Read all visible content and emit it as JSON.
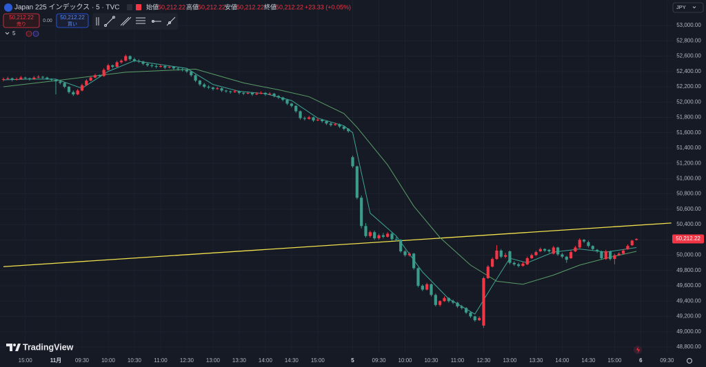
{
  "header": {
    "symbol": "Japan 225 インデックス · 5 · TVC",
    "ohlc": [
      {
        "label": "始値",
        "value": "50,212.22"
      },
      {
        "label": "高値",
        "value": "50,212.22"
      },
      {
        "label": "安値",
        "value": "50,212.22"
      },
      {
        "label": "終値",
        "value": "50,212.22"
      }
    ],
    "change": "+23.33 (+0.05%)",
    "sell": {
      "price": "50,212.22",
      "label": "売り"
    },
    "spread": "0.00",
    "buy": {
      "price": "50,212.22",
      "label": "買い"
    },
    "indicator": "5",
    "currency": "JPY",
    "brand": "TradingView"
  },
  "chart_data": {
    "type": "candlestick",
    "up_color": "#f23645",
    "down_color": "#3b9c8c",
    "grid": true,
    "xlim": [
      -0.79,
      153.2
    ],
    "ylim": [
      48719,
      53333
    ],
    "xticks": [
      {
        "value": 5,
        "label": "15:00"
      },
      {
        "value": 12,
        "label": "11月"
      },
      {
        "value": 18,
        "label": "09:30"
      },
      {
        "value": 24,
        "label": "10:00"
      },
      {
        "value": 30,
        "label": "10:30"
      },
      {
        "value": 36,
        "label": "11:00"
      },
      {
        "value": 42,
        "label": "12:30"
      },
      {
        "value": 48,
        "label": "13:00"
      },
      {
        "value": 54,
        "label": "13:30"
      },
      {
        "value": 60,
        "label": "14:00"
      },
      {
        "value": 66,
        "label": "14:30"
      },
      {
        "value": 72,
        "label": "15:00"
      },
      {
        "value": 80,
        "label": "5"
      },
      {
        "value": 86,
        "label": "09:30"
      },
      {
        "value": 92,
        "label": "10:00"
      },
      {
        "value": 98,
        "label": "10:30"
      },
      {
        "value": 104,
        "label": "11:00"
      },
      {
        "value": 110,
        "label": "12:30"
      },
      {
        "value": 116,
        "label": "13:00"
      },
      {
        "value": 122,
        "label": "13:30"
      },
      {
        "value": 128,
        "label": "14:00"
      },
      {
        "value": 134,
        "label": "14:30"
      },
      {
        "value": 140,
        "label": "15:00"
      },
      {
        "value": 146,
        "label": "6"
      },
      {
        "value": 152,
        "label": "09:30"
      }
    ],
    "yticks": [
      {
        "value": 48800,
        "label": "48,800.00"
      },
      {
        "value": 49000,
        "label": "49,000.00"
      },
      {
        "value": 49200,
        "label": "49,200.00"
      },
      {
        "value": 49400,
        "label": "49,400.00"
      },
      {
        "value": 49600,
        "label": "49,600.00"
      },
      {
        "value": 49800,
        "label": "49,800.00"
      },
      {
        "value": 50000,
        "label": "50,000.00"
      },
      {
        "value": 50200,
        "label": "50,200.00"
      },
      {
        "value": 50400,
        "label": "50,400.00"
      },
      {
        "value": 50600,
        "label": "50,600.00"
      },
      {
        "value": 50800,
        "label": "50,800.00"
      },
      {
        "value": 51000,
        "label": "51,000.00"
      },
      {
        "value": 51200,
        "label": "51,200.00"
      },
      {
        "value": 51400,
        "label": "51,400.00"
      },
      {
        "value": 51600,
        "label": "51,600.00"
      },
      {
        "value": 51800,
        "label": "51,800.00"
      },
      {
        "value": 52000,
        "label": "52,000.00"
      },
      {
        "value": 52200,
        "label": "52,200.00"
      },
      {
        "value": 52400,
        "label": "52,400.00"
      },
      {
        "value": 52600,
        "label": "52,600.00"
      },
      {
        "value": 52800,
        "label": "52,800.00"
      },
      {
        "value": 53000,
        "label": "53,000.00"
      }
    ],
    "last_price": {
      "value": 50212.22,
      "label": "50,212.22"
    },
    "trendline": {
      "color": "#f2e14c",
      "x": [
        0,
        153
      ],
      "values": [
        49850,
        50420
      ]
    },
    "lines": [
      {
        "color": "#3fa596",
        "x": [
          0,
          6,
          12,
          18,
          24,
          30,
          36,
          42,
          48,
          54,
          60,
          66,
          72,
          78,
          80,
          84,
          90,
          96,
          102,
          108,
          112,
          116,
          120,
          126,
          132,
          138,
          145
        ],
        "values": [
          52290,
          52300,
          52300,
          52180,
          52400,
          52540,
          52490,
          52440,
          52230,
          52140,
          52110,
          52020,
          51790,
          51690,
          51600,
          50550,
          50250,
          49780,
          49430,
          49230,
          49600,
          49960,
          49900,
          50040,
          50080,
          50040,
          50100
        ]
      },
      {
        "color": "#5a9e68",
        "x": [
          0,
          12,
          28,
          44,
          55,
          63,
          70,
          78,
          81,
          88,
          94,
          100,
          107,
          113,
          119,
          126,
          132,
          138,
          145
        ],
        "values": [
          52200,
          52280,
          52390,
          52430,
          52250,
          52160,
          52070,
          51850,
          51670,
          51180,
          50640,
          50230,
          49870,
          49660,
          49620,
          49740,
          49870,
          49960,
          50050
        ]
      }
    ],
    "ohlc": [
      [
        52290,
        52320,
        52270,
        52300
      ],
      [
        52300,
        52330,
        52290,
        52310
      ],
      [
        52310,
        52320,
        52270,
        52290
      ],
      [
        52290,
        52320,
        52280,
        52300
      ],
      [
        52300,
        52340,
        52290,
        52320
      ],
      [
        52320,
        52330,
        52300,
        52310
      ],
      [
        52310,
        52320,
        52280,
        52300
      ],
      [
        52300,
        52340,
        52290,
        52320
      ],
      [
        52320,
        52350,
        52310,
        52330
      ],
      [
        52330,
        52340,
        52300,
        52320
      ],
      [
        52320,
        52330,
        52290,
        52300
      ],
      [
        52300,
        52310,
        52270,
        52290
      ],
      [
        52290,
        52300,
        52100,
        52270
      ],
      [
        52270,
        52290,
        52230,
        52250
      ],
      [
        52250,
        52260,
        52180,
        52200
      ],
      [
        52200,
        52210,
        52110,
        52130
      ],
      [
        52130,
        52150,
        52080,
        52100
      ],
      [
        52100,
        52170,
        52090,
        52150
      ],
      [
        52150,
        52240,
        52140,
        52220
      ],
      [
        52220,
        52300,
        52210,
        52280
      ],
      [
        52280,
        52340,
        52270,
        52320
      ],
      [
        52320,
        52370,
        52310,
        52350
      ],
      [
        52350,
        52360,
        52320,
        52340
      ],
      [
        52340,
        52440,
        52330,
        52420
      ],
      [
        52420,
        52500,
        52410,
        52480
      ],
      [
        52480,
        52490,
        52440,
        52460
      ],
      [
        52460,
        52540,
        52450,
        52520
      ],
      [
        52520,
        52560,
        52500,
        52540
      ],
      [
        52540,
        52620,
        52530,
        52600
      ],
      [
        52600,
        52610,
        52540,
        52560
      ],
      [
        52560,
        52580,
        52520,
        52540
      ],
      [
        52540,
        52560,
        52510,
        52530
      ],
      [
        52530,
        52540,
        52480,
        52500
      ],
      [
        52500,
        52520,
        52460,
        52480
      ],
      [
        52480,
        52500,
        52450,
        52470
      ],
      [
        52470,
        52490,
        52440,
        52460
      ],
      [
        52460,
        52490,
        52450,
        52470
      ],
      [
        52470,
        52480,
        52430,
        52450
      ],
      [
        52450,
        52480,
        52440,
        52460
      ],
      [
        52460,
        52470,
        52420,
        52440
      ],
      [
        52440,
        52450,
        52410,
        52430
      ],
      [
        52430,
        52450,
        52400,
        52420
      ],
      [
        52420,
        52430,
        52380,
        52400
      ],
      [
        52400,
        52410,
        52330,
        52350
      ],
      [
        52350,
        52360,
        52260,
        52280
      ],
      [
        52280,
        52290,
        52210,
        52230
      ],
      [
        52230,
        52250,
        52180,
        52200
      ],
      [
        52200,
        52220,
        52170,
        52190
      ],
      [
        52190,
        52200,
        52150,
        52170
      ],
      [
        52170,
        52200,
        52160,
        52180
      ],
      [
        52180,
        52190,
        52130,
        52150
      ],
      [
        52150,
        52160,
        52120,
        52140
      ],
      [
        52140,
        52150,
        52110,
        52130
      ],
      [
        52130,
        52160,
        52120,
        52140
      ],
      [
        52140,
        52150,
        52100,
        52120
      ],
      [
        52120,
        52130,
        52090,
        52110
      ],
      [
        52110,
        52140,
        52100,
        52120
      ],
      [
        52120,
        52130,
        52080,
        52100
      ],
      [
        52100,
        52130,
        52090,
        52110
      ],
      [
        52110,
        52140,
        52100,
        52120
      ],
      [
        52120,
        52130,
        52080,
        52100
      ],
      [
        52100,
        52130,
        52090,
        52110
      ],
      [
        52110,
        52120,
        52060,
        52080
      ],
      [
        52080,
        52090,
        52040,
        52060
      ],
      [
        52060,
        52070,
        52010,
        52030
      ],
      [
        52030,
        52040,
        51960,
        51980
      ],
      [
        51980,
        51990,
        51930,
        51950
      ],
      [
        51950,
        51960,
        51860,
        51880
      ],
      [
        51880,
        51890,
        51770,
        51790
      ],
      [
        51790,
        51810,
        51760,
        51780
      ],
      [
        51780,
        51820,
        51770,
        51800
      ],
      [
        51800,
        51810,
        51740,
        51760
      ],
      [
        51760,
        51790,
        51750,
        51770
      ],
      [
        51770,
        51780,
        51730,
        51750
      ],
      [
        51750,
        51760,
        51700,
        51720
      ],
      [
        51720,
        51740,
        51680,
        51700
      ],
      [
        51700,
        51730,
        51690,
        51710
      ],
      [
        51710,
        51720,
        51660,
        51680
      ],
      [
        51680,
        51690,
        51630,
        51650
      ],
      [
        51650,
        51660,
        51600,
        51620
      ],
      [
        51280,
        51300,
        51140,
        51160
      ],
      [
        51160,
        51170,
        50730,
        50750
      ],
      [
        50750,
        50780,
        50350,
        50380
      ],
      [
        50380,
        50420,
        50230,
        50250
      ],
      [
        50250,
        50320,
        50230,
        50300
      ],
      [
        50300,
        50320,
        50200,
        50220
      ],
      [
        50220,
        50280,
        50200,
        50260
      ],
      [
        50260,
        50290,
        50220,
        50240
      ],
      [
        50240,
        50300,
        50230,
        50280
      ],
      [
        50280,
        50300,
        50190,
        50210
      ],
      [
        50210,
        50240,
        50180,
        50200
      ],
      [
        50200,
        50210,
        50030,
        50050
      ],
      [
        50050,
        50070,
        49980,
        50000
      ],
      [
        50000,
        50040,
        49980,
        50020
      ],
      [
        50020,
        50030,
        49810,
        49830
      ],
      [
        49830,
        49840,
        49580,
        49600
      ],
      [
        49600,
        49620,
        49530,
        49550
      ],
      [
        49550,
        49640,
        49540,
        49620
      ],
      [
        49620,
        49630,
        49460,
        49480
      ],
      [
        49480,
        49500,
        49330,
        49350
      ],
      [
        49350,
        49410,
        49330,
        49400
      ],
      [
        49400,
        49460,
        49390,
        49440
      ],
      [
        49440,
        49450,
        49380,
        49400
      ],
      [
        49400,
        49420,
        49360,
        49380
      ],
      [
        49380,
        49390,
        49310,
        49330
      ],
      [
        49330,
        49350,
        49290,
        49310
      ],
      [
        49310,
        49320,
        49230,
        49250
      ],
      [
        49250,
        49260,
        49180,
        49200
      ],
      [
        49200,
        49210,
        49130,
        49150
      ],
      [
        49150,
        49200,
        49140,
        49180
      ],
      [
        49080,
        49720,
        49050,
        49700
      ],
      [
        49700,
        49870,
        49690,
        49850
      ],
      [
        49850,
        49970,
        49840,
        49950
      ],
      [
        49950,
        50130,
        49940,
        50060
      ],
      [
        50060,
        50080,
        49960,
        49980
      ],
      [
        49980,
        50030,
        49960,
        50000
      ],
      [
        50050,
        50060,
        49880,
        49900
      ],
      [
        49900,
        49920,
        49860,
        49880
      ],
      [
        49880,
        49900,
        49840,
        49860
      ],
      [
        49860,
        49910,
        49850,
        49890
      ],
      [
        49880,
        49980,
        49870,
        49960
      ],
      [
        49960,
        50020,
        49950,
        50000
      ],
      [
        50000,
        50060,
        49990,
        50040
      ],
      [
        50050,
        50100,
        50040,
        50080
      ],
      [
        50080,
        50090,
        50040,
        50060
      ],
      [
        50070,
        50080,
        50030,
        50050
      ],
      [
        50020,
        50120,
        50010,
        50100
      ],
      [
        50100,
        50110,
        49990,
        50010
      ],
      [
        50010,
        50030,
        49960,
        49980
      ],
      [
        49980,
        49990,
        49900,
        49940
      ],
      [
        49960,
        50060,
        49950,
        50040
      ],
      [
        50050,
        50120,
        50040,
        50100
      ],
      [
        50100,
        50220,
        50090,
        50200
      ],
      [
        50200,
        50210,
        50160,
        50180
      ],
      [
        50170,
        50190,
        50100,
        50120
      ],
      [
        50120,
        50130,
        50060,
        50080
      ],
      [
        50070,
        50080,
        50030,
        50050
      ],
      [
        50050,
        50060,
        49940,
        49960
      ],
      [
        49950,
        50070,
        49940,
        50050
      ],
      [
        50050,
        50060,
        49930,
        49950
      ],
      [
        49950,
        50020,
        49880,
        50000
      ],
      [
        50000,
        50040,
        49990,
        50020
      ],
      [
        50020,
        50080,
        50010,
        50060
      ],
      [
        50080,
        50140,
        50070,
        50120
      ],
      [
        50130,
        50200,
        50120,
        50190
      ],
      [
        50200,
        50220,
        50190,
        50212.22
      ]
    ]
  }
}
